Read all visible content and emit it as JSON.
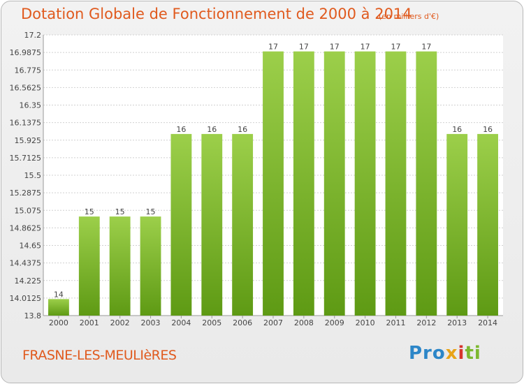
{
  "title": "Dotation Globale de Fonctionnement de 2000 à 2014",
  "subtitle": "(en milliers d'€)",
  "place_name": "FRASNE-LES-MEULIèRES",
  "brand": {
    "p1": "Pro",
    "p2": "x",
    "p3": "i",
    "p4": "ti"
  },
  "colors": {
    "title": "#e05a1e",
    "bar_top": "#9ccf4a",
    "bar_bottom": "#5e9a14",
    "grid": "#d0d0d0",
    "plot_bg": "#ffffff"
  },
  "chart_data": {
    "type": "bar",
    "title": "Dotation Globale de Fonctionnement de 2000 à 2014",
    "subtitle": "(en milliers d'€)",
    "xlabel": "",
    "ylabel": "",
    "categories": [
      "2000",
      "2001",
      "2002",
      "2003",
      "2004",
      "2005",
      "2006",
      "2007",
      "2008",
      "2009",
      "2010",
      "2011",
      "2012",
      "2013",
      "2014"
    ],
    "values": [
      14,
      15,
      15,
      15,
      16,
      16,
      16,
      17,
      17,
      17,
      17,
      17,
      17,
      16,
      16
    ],
    "bar_heights": [
      14.0,
      15.0,
      15.0,
      15.0,
      16.0,
      16.0,
      16.0,
      17.0,
      17.0,
      17.0,
      17.0,
      17.0,
      17.0,
      16.0,
      16.0
    ],
    "ylim": [
      13.8,
      17.2
    ],
    "yticks": [
      "13.8",
      "14.0125",
      "14.225",
      "14.4375",
      "14.65",
      "14.8625",
      "15.075",
      "15.2875",
      "15.5",
      "15.7125",
      "15.925",
      "16.1375",
      "16.35",
      "16.5625",
      "16.775",
      "16.9875",
      "17.2"
    ],
    "grid": true,
    "legend": "none"
  }
}
